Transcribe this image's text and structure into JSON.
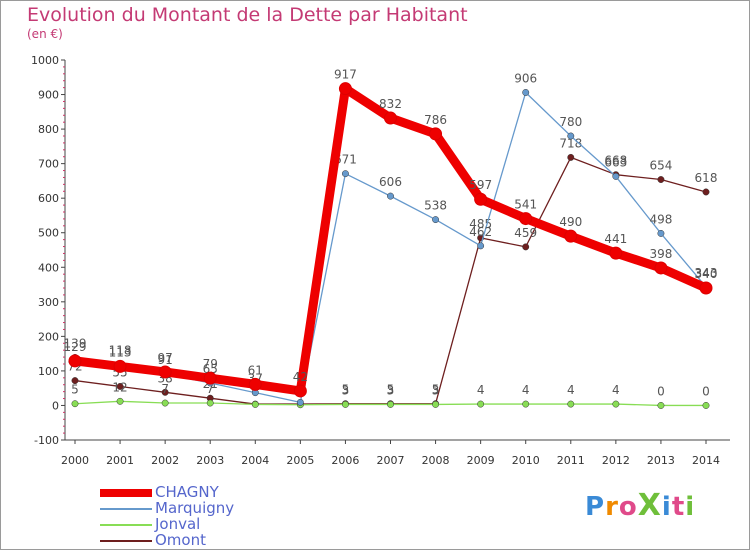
{
  "title": "Evolution du Montant de la Dette par Habitant",
  "subtitle": "(en €)",
  "logo": "ProXiti",
  "chart_data": {
    "type": "line",
    "title": "Evolution du Montant de la Dette par Habitant",
    "ylabel": "(en €)",
    "xlabel": "",
    "ylim": [
      -100,
      1000
    ],
    "yticks": [
      -100,
      0,
      100,
      200,
      300,
      400,
      500,
      600,
      700,
      800,
      900,
      1000
    ],
    "categories": [
      "2000",
      "2001",
      "2002",
      "2003",
      "2004",
      "2005",
      "2006",
      "2007",
      "2008",
      "2009",
      "2010",
      "2011",
      "2012",
      "2013",
      "2014"
    ],
    "grid": false,
    "legend_position": "bottom-left",
    "series": [
      {
        "name": "Omont",
        "color": "#6e1f1f",
        "values": [
          72,
          55,
          38,
          21,
          4,
          4,
          5,
          5,
          5,
          485,
          459,
          718,
          668,
          654,
          618
        ]
      },
      {
        "name": "Jonval",
        "color": "#88dd55",
        "values": [
          5,
          12,
          7,
          7,
          3,
          2,
          3,
          3,
          3,
          4,
          4,
          4,
          4,
          0,
          0
        ]
      },
      {
        "name": "Marquigny",
        "color": "#6699cc",
        "values": [
          139,
          118,
          91,
          65,
          37,
          9,
          671,
          606,
          538,
          462,
          906,
          780,
          663,
          498,
          343
        ]
      },
      {
        "name": "CHAGNY",
        "color": "#ee0000",
        "values": [
          129,
          113,
          97,
          79,
          61,
          42,
          917,
          832,
          786,
          597,
          541,
          490,
          441,
          398,
          340
        ]
      }
    ]
  }
}
